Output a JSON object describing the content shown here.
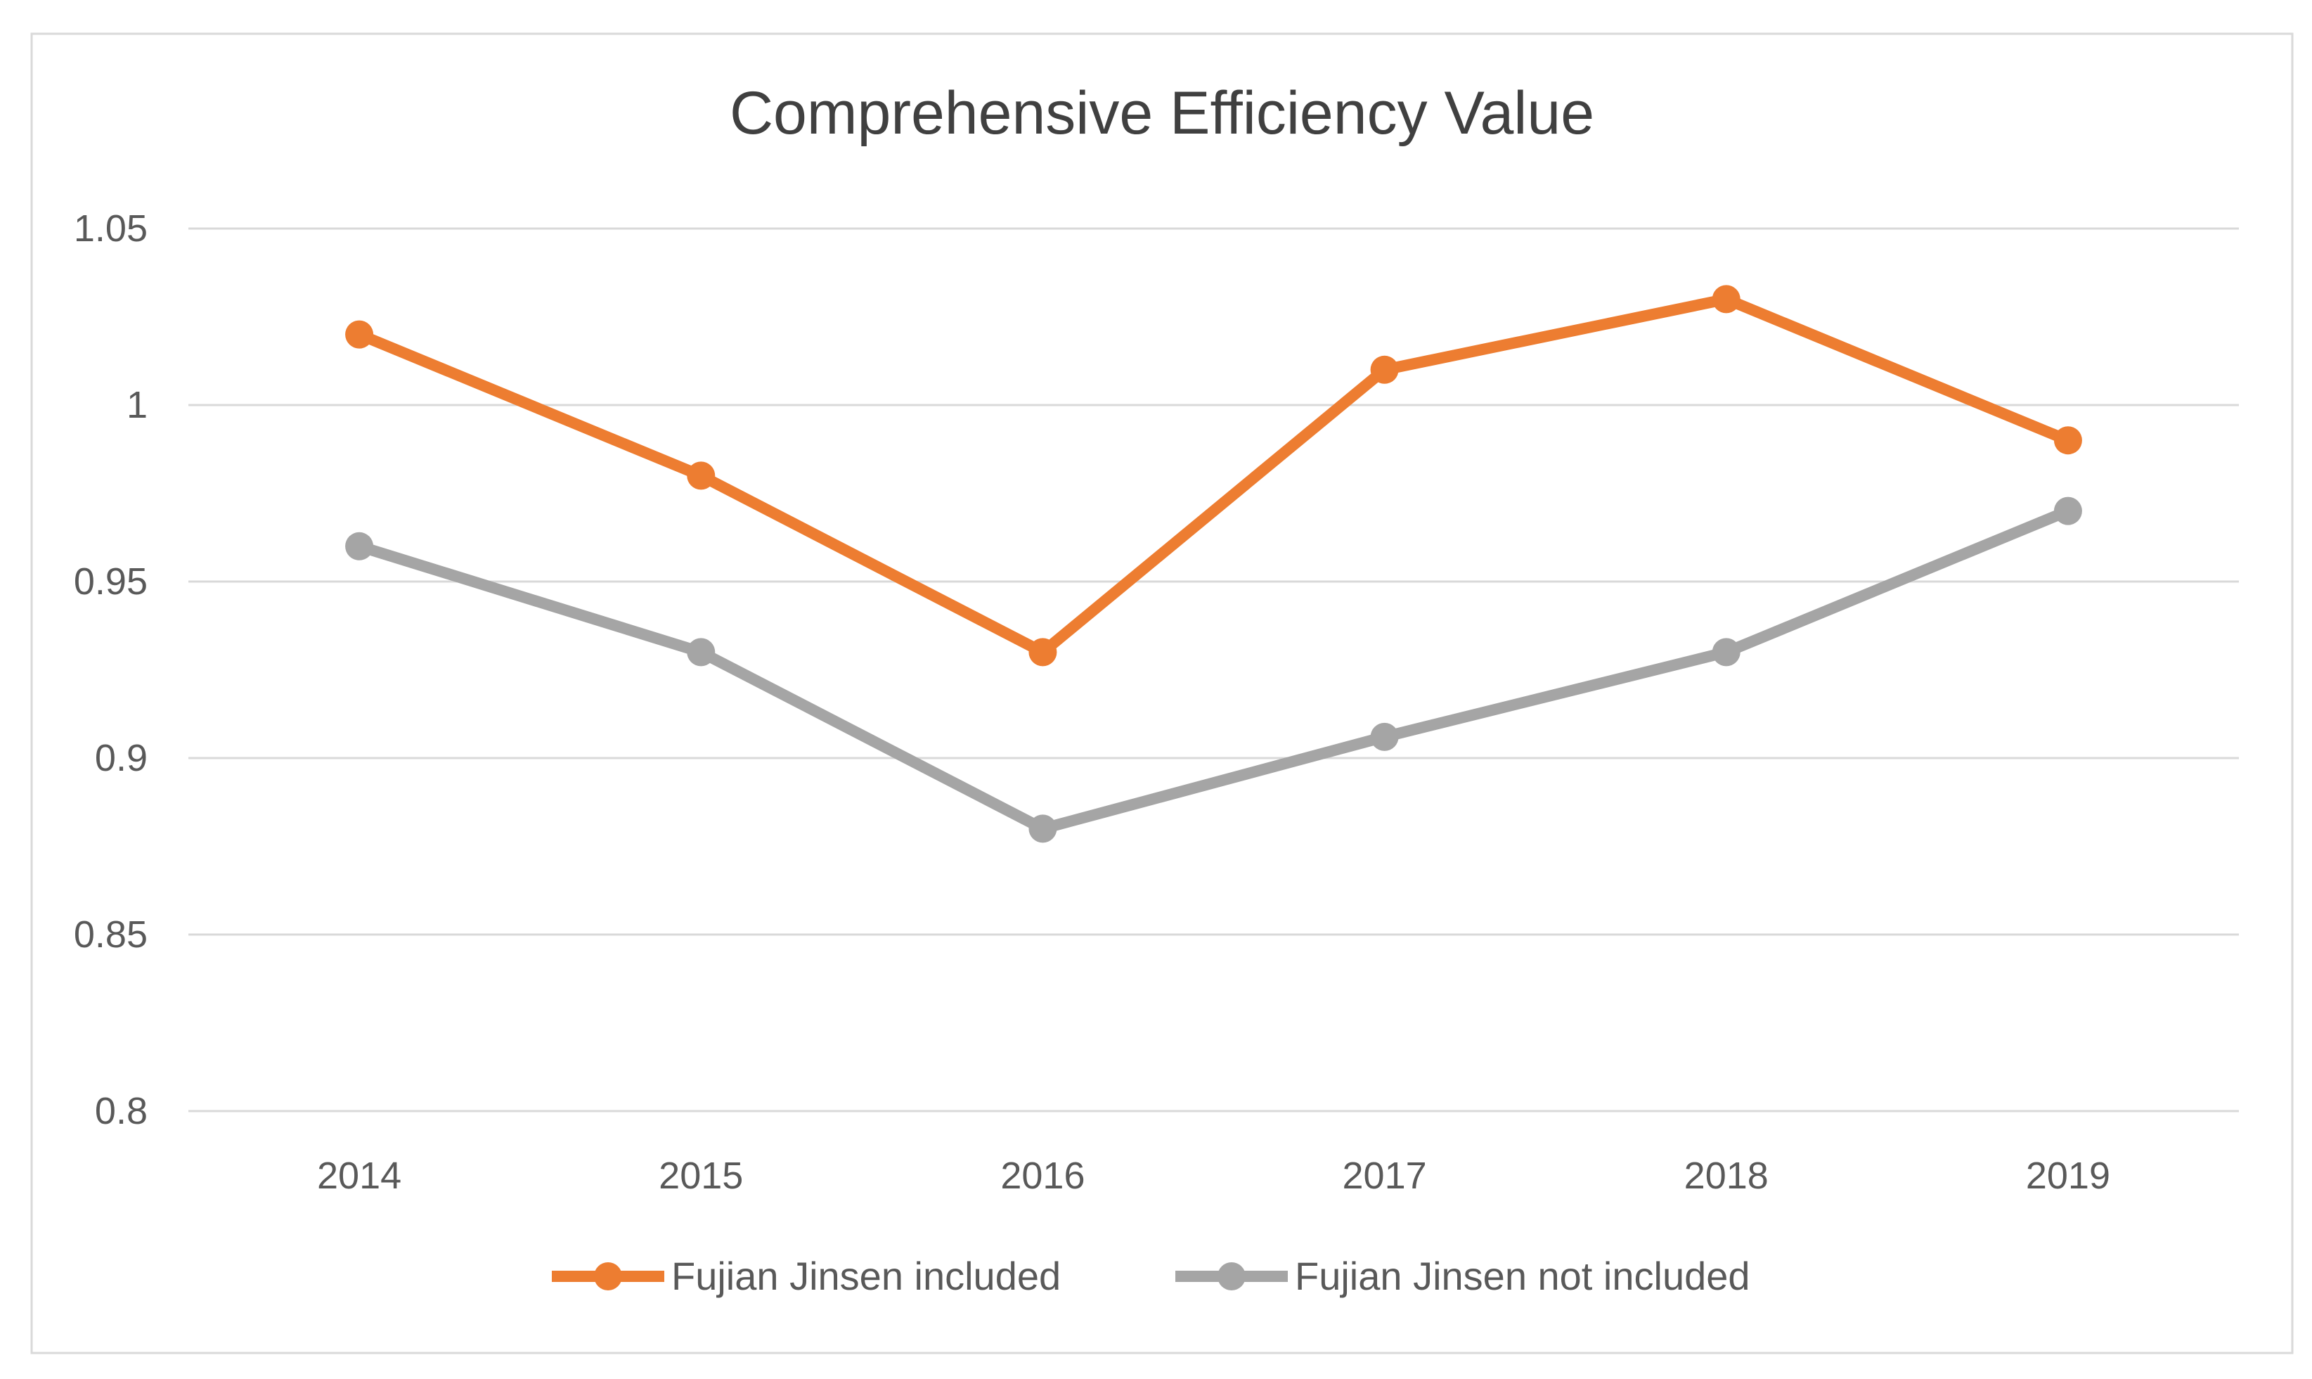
{
  "chart_data": {
    "type": "line",
    "title": "Comprehensive Efficiency Value",
    "xlabel": "",
    "ylabel": "",
    "categories": [
      "2014",
      "2015",
      "2016",
      "2017",
      "2018",
      "2019"
    ],
    "series": [
      {
        "name": "Fujian Jinsen included",
        "color": "#ED7D31",
        "values": [
          1.02,
          0.98,
          0.93,
          1.01,
          1.03,
          0.99
        ]
      },
      {
        "name": "Fujian Jinsen not included",
        "color": "#A5A5A5",
        "values": [
          0.96,
          0.93,
          0.88,
          0.906,
          0.93,
          0.97
        ]
      }
    ],
    "ylim": [
      0.8,
      1.05
    ],
    "yticks": [
      "0.8",
      "0.85",
      "0.9",
      "0.95",
      "1",
      "1.05"
    ],
    "grid": true,
    "legend": "bottom"
  }
}
